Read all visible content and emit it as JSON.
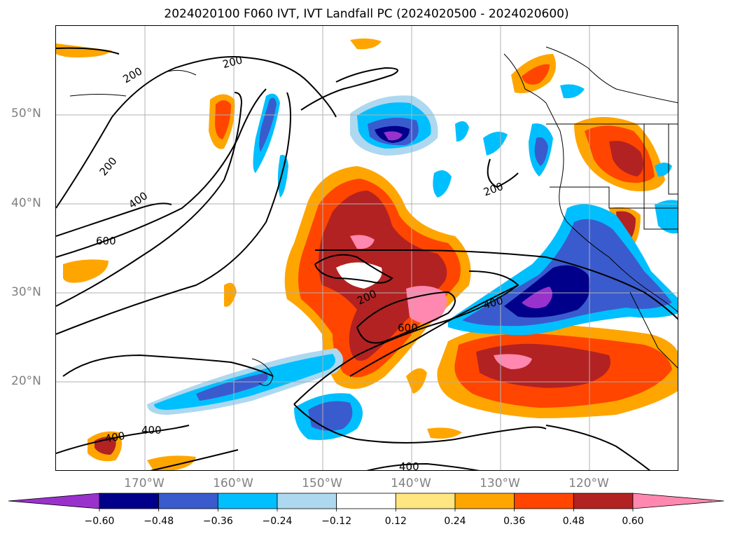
{
  "title": "2024020100 F060 IVT, IVT Landfall PC (2024020500 - 2024020600)",
  "lat_labels": [
    "50°N",
    "40°N",
    "30°N",
    "20°N"
  ],
  "lon_labels": [
    "170°W",
    "160°W",
    "150°W",
    "140°W",
    "130°W",
    "120°W"
  ],
  "contour_labels": [
    "200",
    "200",
    "200",
    "400",
    "600",
    "200",
    "600",
    "400",
    "200",
    "400",
    "400",
    "400"
  ],
  "colorbar": {
    "ticks": [
      "−0.60",
      "−0.48",
      "−0.36",
      "−0.24",
      "−0.12",
      "0.12",
      "0.24",
      "0.36",
      "0.48",
      "0.60"
    ],
    "colors": [
      "#9932cc",
      "#00008b",
      "#3a5bcd",
      "#00bfff",
      "#add8f0",
      "#ffffff",
      "#ffe680",
      "#ffa500",
      "#ff4500",
      "#b22222",
      "#ff88b0"
    ]
  },
  "map": {
    "lat_range": [
      10,
      60
    ],
    "lon_range": [
      -180,
      -110
    ],
    "gridlines": true
  }
}
